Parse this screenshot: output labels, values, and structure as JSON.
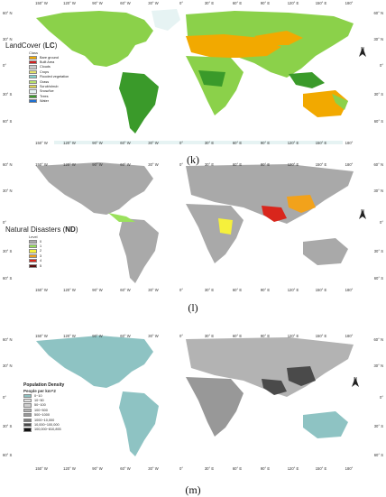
{
  "panels": [
    {
      "id": "k",
      "caption": "(k)",
      "legend": {
        "title": "LandCover (",
        "abbr": "LC",
        "title_end": ")",
        "subtitle": "Class",
        "items": [
          {
            "label": "Bare ground",
            "color": "#f2a900"
          },
          {
            "label": "Built Area",
            "color": "#d42020"
          },
          {
            "label": "Clouds",
            "color": "#c8c8c8"
          },
          {
            "label": "Crops",
            "color": "#e7e76a"
          },
          {
            "label": "Flooded vegetation",
            "color": "#7fd1c9"
          },
          {
            "label": "Grass",
            "color": "#b9e36a"
          },
          {
            "label": "Scrub/shrub",
            "color": "#dcd24f"
          },
          {
            "label": "Snow/Ice",
            "color": "#e6f3f3"
          },
          {
            "label": "Trees",
            "color": "#3a9a2a"
          },
          {
            "label": "Water",
            "color": "#1d6fd1"
          }
        ]
      }
    },
    {
      "id": "l",
      "caption": "(l)",
      "legend": {
        "title": "Natural Disasters (",
        "abbr": "ND",
        "title_end": ")",
        "subtitle": "Level",
        "items": [
          {
            "label": "0",
            "color": "#a9a9a9"
          },
          {
            "label": "1",
            "color": "#9be15d"
          },
          {
            "label": "2",
            "color": "#f5f03c"
          },
          {
            "label": "3",
            "color": "#f2a21b"
          },
          {
            "label": "4",
            "color": "#d9261c"
          },
          {
            "label": "5",
            "color": "#5a0d0d"
          }
        ]
      }
    },
    {
      "id": "m",
      "caption": "(m)",
      "legend": {
        "title": "Population Density",
        "abbr": "",
        "title_end": "",
        "subtitle": "People per km^2",
        "items": [
          {
            "label": "0~10",
            "color": "#8ec3c3"
          },
          {
            "label": "10~50",
            "color": "#e2e2e2"
          },
          {
            "label": "50~100",
            "color": "#cfcfcf"
          },
          {
            "label": "100~500",
            "color": "#b3b3b3"
          },
          {
            "label": "500~1000",
            "color": "#989898"
          },
          {
            "label": "1000~10,000",
            "color": "#7a7a7a"
          },
          {
            "label": "10,000~100,000",
            "color": "#4a4a4a"
          },
          {
            "label": "100,000~810,893",
            "color": "#111111"
          }
        ]
      }
    }
  ],
  "lon_ticks_top": [
    "150° W",
    "120° W",
    "90° W",
    "60° W",
    "30° W",
    "0°",
    "30° E",
    "60° E",
    "90° E",
    "120° E",
    "150° E",
    "180°"
  ],
  "lon_ticks_bottom": [
    "150° W",
    "120° W",
    "90° W",
    "60° W",
    "30° W",
    "0°",
    "30° E",
    "60° E",
    "90° E",
    "120° E",
    "150° E",
    "180°"
  ],
  "lat_ticks": [
    "60° N",
    "30° N",
    "0°",
    "30° S",
    "60° S"
  ],
  "north_arrow_label": "N",
  "map_colors": {
    "k_base": "#8bd14a",
    "k_forest": "#3a9a2a",
    "k_desert": "#f2a900",
    "k_ice": "#e6f3f3",
    "l_base": "#a9a9a9",
    "l_low": "#9be15d",
    "l_high": "#d9261c",
    "m_base": "#8ec3c3",
    "m_mid": "#b3b3b3",
    "m_dark": "#4a4a4a"
  }
}
